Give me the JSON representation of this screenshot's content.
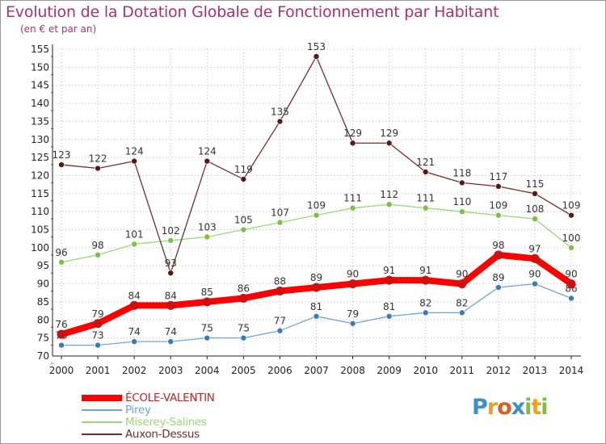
{
  "header": {
    "title": "Evolution de la Dotation Globale de Fonctionnement par Habitant",
    "subtitle": "(en € et par an)"
  },
  "colors": {
    "title": "#b0306a",
    "grid": "#bbbbbb",
    "axis": "#222222",
    "tick_marks": "#c83c3c"
  },
  "chart_data": {
    "type": "line",
    "title": "Evolution de la Dotation Globale de Fonctionnement par Habitant",
    "subtitle": "(en € et par an)",
    "xlabel": "",
    "ylabel": "",
    "x": [
      "2000",
      "2001",
      "2002",
      "2003",
      "2004",
      "2005",
      "2006",
      "2007",
      "2008",
      "2009",
      "2010",
      "2011",
      "2012",
      "2013",
      "2014"
    ],
    "ylim": [
      70,
      155
    ],
    "yticks": [
      70,
      75,
      80,
      85,
      90,
      95,
      100,
      105,
      110,
      115,
      120,
      125,
      130,
      135,
      140,
      145,
      150,
      155
    ],
    "grid": true,
    "legend_position": "bottom-left",
    "series": [
      {
        "name": "ÉCOLE-VALENTIN",
        "color": "#ff0000",
        "marker": "#cc1111",
        "emphasis": true,
        "values": [
          76,
          79,
          84,
          84,
          85,
          86,
          88,
          89,
          90,
          91,
          91,
          90,
          98,
          97,
          90
        ]
      },
      {
        "name": "Pirey",
        "color": "#6fa6d6",
        "marker": "#3a7ab8",
        "emphasis": false,
        "values": [
          73,
          73,
          74,
          74,
          75,
          75,
          77,
          81,
          79,
          81,
          82,
          82,
          89,
          90,
          86
        ]
      },
      {
        "name": "Miserey-Salines",
        "color": "#9cd67a",
        "marker": "#7cc040",
        "emphasis": false,
        "values": [
          96,
          98,
          101,
          102,
          103,
          105,
          107,
          109,
          111,
          112,
          111,
          110,
          109,
          108,
          100
        ]
      },
      {
        "name": "Auxon-Dessus",
        "color": "#7a2a2a",
        "marker": "#5a1818",
        "emphasis": false,
        "values": [
          123,
          122,
          124,
          93,
          124,
          119,
          135,
          153,
          129,
          129,
          121,
          118,
          117,
          115,
          109
        ]
      }
    ]
  },
  "logo": {
    "letters": [
      {
        "ch": "P",
        "color": "#3b8fd0"
      },
      {
        "ch": "r",
        "color": "#f0a020"
      },
      {
        "ch": "o",
        "color": "#e05a1c"
      },
      {
        "ch": "x",
        "color": "#3b8fd0"
      },
      {
        "ch": "i",
        "color": "#7bbf3a"
      },
      {
        "ch": "t",
        "color": "#f0a020"
      },
      {
        "ch": "i",
        "color": "#7bbf3a"
      }
    ]
  }
}
